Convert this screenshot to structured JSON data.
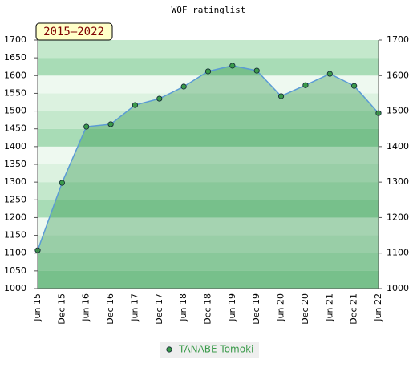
{
  "chart_data": {
    "type": "area",
    "title": "WOF ratinglist",
    "annotation": "2015–2022",
    "categories": [
      "Jun 15",
      "Dec 15",
      "Jun 16",
      "Dec 16",
      "Jun 17",
      "Dec 17",
      "Jun 18",
      "Dec 18",
      "Jun 19",
      "Dec 19",
      "Jun 20",
      "Dec 20",
      "Jun 21",
      "Dec 21",
      "Jun 22"
    ],
    "series": [
      {
        "name": "TANABE Tomoki",
        "color": "#5b9bd5",
        "values": [
          1108,
          1298,
          1456,
          1463,
          1517,
          1535,
          1569,
          1612,
          1628,
          1614,
          1542,
          1573,
          1605,
          1571,
          1494
        ]
      }
    ],
    "ylim": [
      1000,
      1700
    ],
    "yticks": [
      1000,
      1050,
      1100,
      1150,
      1200,
      1250,
      1300,
      1350,
      1400,
      1450,
      1500,
      1550,
      1600,
      1650,
      1700
    ],
    "y2lim": [
      1000,
      1700
    ],
    "y2ticks": [
      1000,
      1100,
      1200,
      1300,
      1400,
      1500,
      1600,
      1700
    ]
  }
}
